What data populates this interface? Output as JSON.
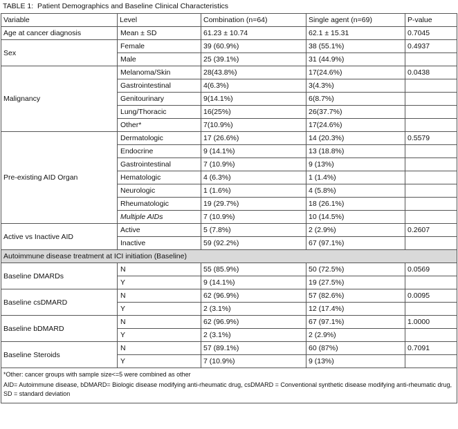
{
  "title": "TABLE 1:  Patient Demographics and Baseline Clinical Characteristics",
  "table": {
    "header": [
      "Variable",
      "Level",
      "Combination (n=64)",
      "Single agent (n=69)",
      "P-value"
    ],
    "groups": [
      {
        "variable": "Age at cancer diagnosis",
        "p_value": "0.7045",
        "rows": [
          {
            "level": "Mean ± SD",
            "combination": "61.23 ± 10.74",
            "single_agent": "62.1 ± 15.31"
          }
        ]
      },
      {
        "variable": "Sex",
        "p_value": "0.4937",
        "rows": [
          {
            "level": "Female",
            "combination": "39 (60.9%)",
            "single_agent": "38 (55.1%)"
          },
          {
            "level": "Male",
            "combination": "25 (39.1%)",
            "single_agent": "31 (44.9%)"
          }
        ]
      },
      {
        "variable": "Malignancy",
        "p_value": "0.0438",
        "rows": [
          {
            "level": "Melanoma/Skin",
            "combination": "28(43.8%)",
            "single_agent": "17(24.6%)"
          },
          {
            "level": "Gastrointestinal",
            "combination": "4(6.3%)",
            "single_agent": "3(4.3%)"
          },
          {
            "level": "Genitourinary",
            "combination": "9(14.1%)",
            "single_agent": "6(8.7%)"
          },
          {
            "level": "Lung/Thoracic",
            "combination": "16(25%)",
            "single_agent": "26(37.7%)"
          },
          {
            "level": "Other*",
            "combination": "7(10.9%)",
            "single_agent": "17(24.6%)"
          }
        ]
      },
      {
        "variable": "Pre-existing AID Organ",
        "p_value": "0.5579",
        "rows": [
          {
            "level": "Dermatologic",
            "combination": "17 (26.6%)",
            "single_agent": "14 (20.3%)"
          },
          {
            "level": "Endocrine",
            "combination": "9 (14.1%)",
            "single_agent": "13 (18.8%)"
          },
          {
            "level": "Gastrointestinal",
            "combination": "7 (10.9%)",
            "single_agent": "9 (13%)"
          },
          {
            "level": "Hematologic",
            "combination": "4 (6.3%)",
            "single_agent": "1 (1.4%)"
          },
          {
            "level": "Neurologic",
            "combination": "1 (1.6%)",
            "single_agent": "4 (5.8%)"
          },
          {
            "level": "Rheumatologic",
            "combination": "19 (29.7%)",
            "single_agent": "18 (26.1%)"
          },
          {
            "level": "Multiple AIDs",
            "combination": "7 (10.9%)",
            "single_agent": "10 (14.5%)"
          }
        ]
      },
      {
        "variable": "Active vs Inactive AID",
        "p_value": "0.2607",
        "rows": [
          {
            "level": "Active",
            "combination": "5 (7.8%)",
            "single_agent": "2 (2.9%)"
          },
          {
            "level": "Inactive",
            "combination": "59 (92.2%)",
            "single_agent": "67 (97.1%)"
          }
        ]
      }
    ],
    "section": "Autoimmune disease treatment at ICI initiation (Baseline)",
    "treatment_groups": [
      {
        "variable": "Baseline DMARDs",
        "p_value": "0.0569",
        "rows": [
          {
            "level": "N",
            "combination": "55 (85.9%)",
            "single_agent": "50 (72.5%)"
          },
          {
            "level": "Y",
            "combination": "9 (14.1%)",
            "single_agent": "19 (27.5%)"
          }
        ]
      },
      {
        "variable": "Baseline csDMARD",
        "p_value": "0.0095",
        "rows": [
          {
            "level": "N",
            "combination": "62 (96.9%)",
            "single_agent": "57 (82.6%)"
          },
          {
            "level": "Y",
            "combination": "2 (3.1%)",
            "single_agent": "12 (17.4%)"
          }
        ]
      },
      {
        "variable": "Baseline bDMARD",
        "p_value": "1.0000",
        "rows": [
          {
            "level": "N",
            "combination": "62 (96.9%)",
            "single_agent": "67 (97.1%)"
          },
          {
            "level": "Y",
            "combination": "2 (3.1%)",
            "single_agent": "2 (2.9%)"
          }
        ]
      },
      {
        "variable": "Baseline Steroids",
        "p_value": "0.7091",
        "rows": [
          {
            "level": "N",
            "combination": "57 (89.1%)",
            "single_agent": "60 (87%)"
          },
          {
            "level": "Y",
            "combination": "7 (10.9%)",
            "single_agent": "9 (13%)"
          }
        ]
      }
    ]
  },
  "footnotes": [
    "*Other: cancer groups with sample size<=5 were combined as other",
    "AID= Autoimmune disease, bDMARD= Biologic disease modifying anti-rheumatic drug, csDMARD = Conventional synthetic disease modifying anti-rheumatic drug, SD = standard deviation"
  ]
}
